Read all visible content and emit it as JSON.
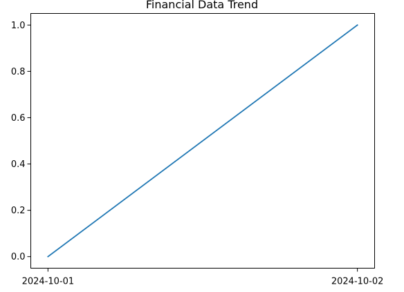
{
  "chart_data": {
    "type": "line",
    "title": "Financial Data Trend",
    "xlabel": "",
    "ylabel": "",
    "x": [
      "2024-10-01",
      "2024-10-02"
    ],
    "series": [
      {
        "values": [
          0.0,
          1.0
        ],
        "color": "#1f77b4"
      }
    ],
    "ylim": [
      -0.05,
      1.05
    ],
    "y_ticks": [
      0.0,
      0.2,
      0.4,
      0.6,
      0.8,
      1.0
    ],
    "y_tick_labels": [
      "0.0",
      "0.2",
      "0.4",
      "0.6",
      "0.8",
      "1.0"
    ],
    "x_tick_labels": [
      "2024-10-01",
      "2024-10-02"
    ],
    "grid": false,
    "legend": "none"
  }
}
